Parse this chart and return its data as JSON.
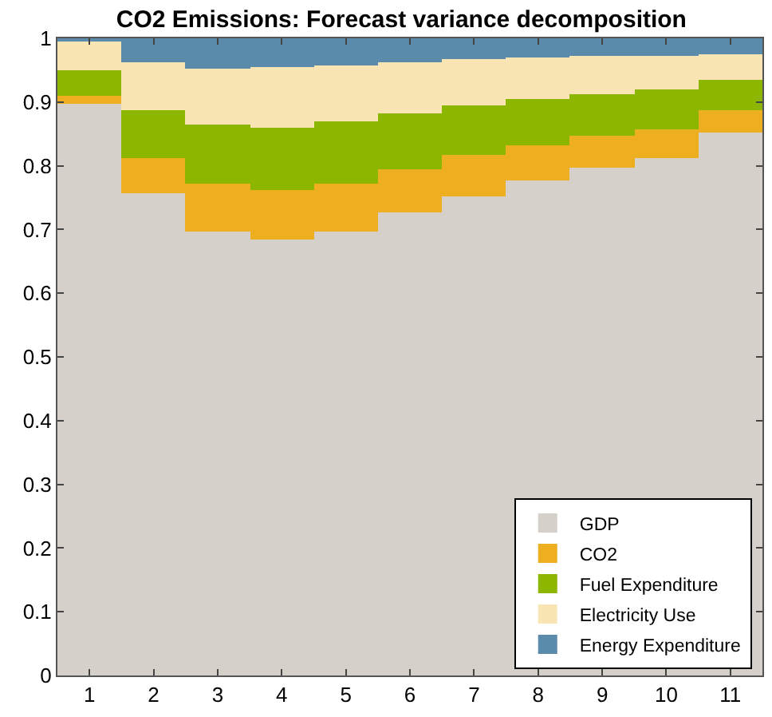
{
  "chart_data": {
    "type": "bar",
    "title": "CO2 Emissions: Forecast variance decomposition",
    "stacked": true,
    "categories": [
      "1",
      "2",
      "3",
      "4",
      "5",
      "6",
      "7",
      "8",
      "9",
      "10",
      "11"
    ],
    "series": [
      {
        "name": "GDP",
        "color": "#d5d0c9",
        "values": [
          0.897,
          0.756,
          0.698,
          0.683,
          0.698,
          0.726,
          0.753,
          0.778,
          0.798,
          0.811,
          0.851
        ]
      },
      {
        "name": "CO2",
        "color": "#edaf1f",
        "values": [
          0.013,
          0.057,
          0.075,
          0.08,
          0.075,
          0.069,
          0.063,
          0.055,
          0.048,
          0.045,
          0.035
        ]
      },
      {
        "name": "Fuel Expenditure",
        "color": "#8db600",
        "values": [
          0.039,
          0.073,
          0.091,
          0.096,
          0.096,
          0.086,
          0.078,
          0.071,
          0.066,
          0.063,
          0.048
        ]
      },
      {
        "name": "Electricity Use",
        "color": "#f9e4b4",
        "values": [
          0.046,
          0.076,
          0.089,
          0.096,
          0.089,
          0.081,
          0.073,
          0.066,
          0.06,
          0.053,
          0.041
        ]
      },
      {
        "name": "Energy Expenditure",
        "color": "#5b8bab",
        "values": [
          0.005,
          0.038,
          0.047,
          0.045,
          0.042,
          0.038,
          0.033,
          0.03,
          0.028,
          0.028,
          0.025
        ]
      }
    ],
    "ylim": [
      0,
      1
    ],
    "yticks": [
      0,
      0.1,
      0.2,
      0.3,
      0.4,
      0.5,
      0.6,
      0.7,
      0.8,
      0.9,
      1
    ],
    "legend": "bottom right"
  }
}
